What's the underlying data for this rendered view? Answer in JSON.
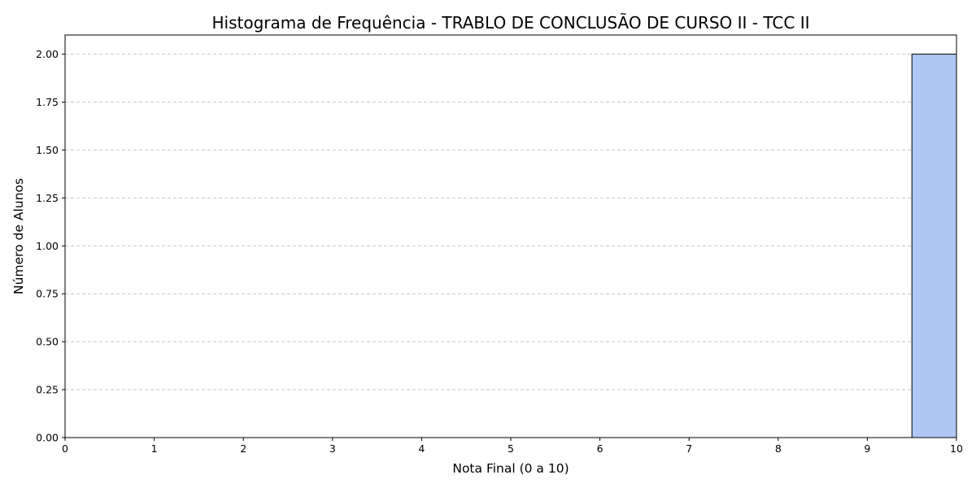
{
  "chart_data": {
    "type": "bar",
    "title": "Histograma de Frequência - TRABLO DE CONCLUSÃO DE CURSO II - TCC II",
    "xlabel": "Nota Final (0 a 10)",
    "ylabel": "Número de Alunos",
    "xlim": [
      0,
      10
    ],
    "ylim": [
      0,
      2.1
    ],
    "x_ticks": [
      0,
      1,
      2,
      3,
      4,
      5,
      6,
      7,
      8,
      9,
      10
    ],
    "x_tick_labels": [
      "0",
      "1",
      "2",
      "3",
      "4",
      "5",
      "6",
      "7",
      "8",
      "9",
      "10"
    ],
    "y_ticks": [
      0,
      0.25,
      0.5,
      0.75,
      1.0,
      1.25,
      1.5,
      1.75,
      2.0
    ],
    "y_tick_labels": [
      "0.00",
      "0.25",
      "0.50",
      "0.75",
      "1.00",
      "1.25",
      "1.50",
      "1.75",
      "2.00"
    ],
    "bins": [
      {
        "x_start": 9.5,
        "x_end": 10.0,
        "count": 2
      }
    ],
    "grid": "y-axis dashed",
    "bar_color": "#aec7f4"
  }
}
